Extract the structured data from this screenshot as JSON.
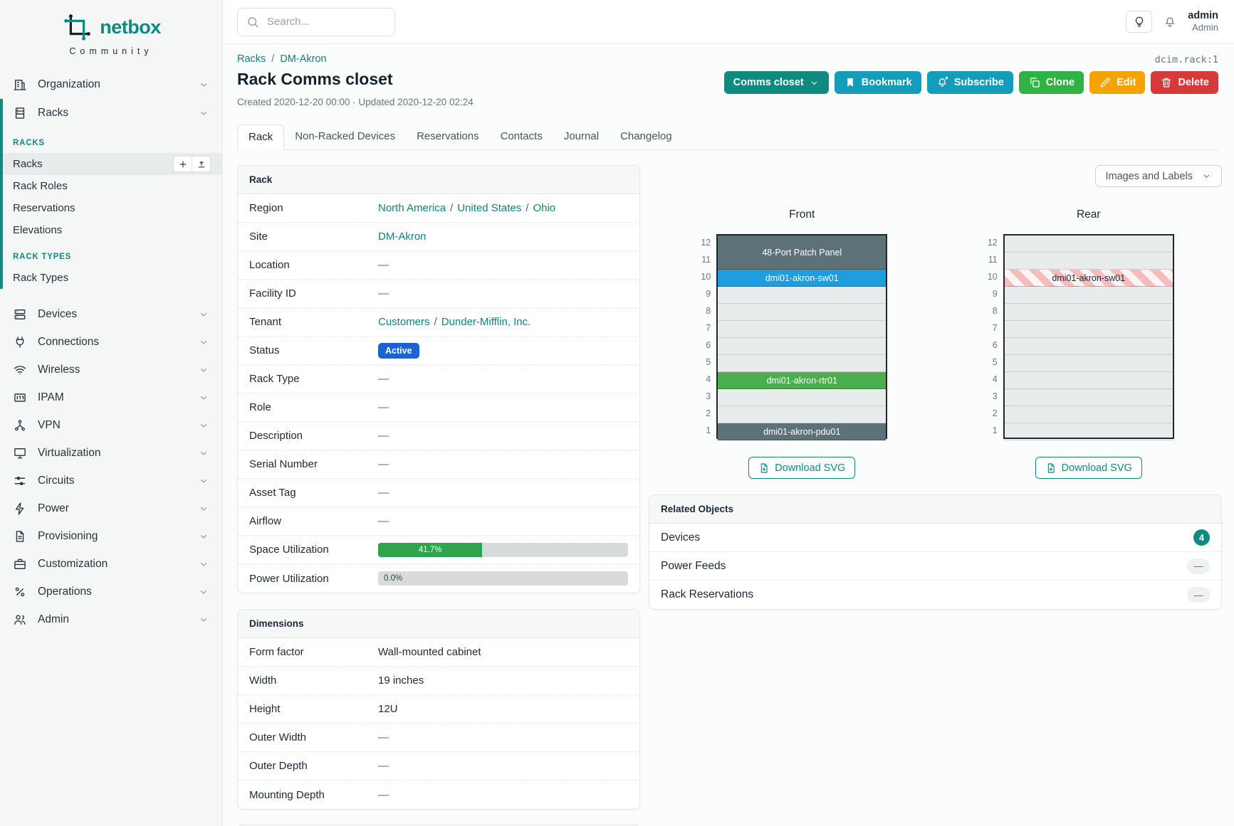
{
  "colors": {
    "brand_teal": "#0e8a80",
    "link_teal": "#0d8577",
    "cyan_button": "#139db8",
    "green_button": "#2fb344",
    "yellow_button": "#f5a300",
    "red_button": "#d63939",
    "status_active_blue": "#1863d6",
    "progress_green": "#2ea44c",
    "device_slate": "#5d7179",
    "device_blue": "#1e9de0",
    "device_green": "#49b04d",
    "reserved_stripe_pink": "#f6bcbc"
  },
  "brand": {
    "name": "netbox",
    "subtitle": "Community"
  },
  "topbar": {
    "search_placeholder": "Search...",
    "user_name": "admin",
    "user_role": "Admin"
  },
  "sidebar": {
    "top_items": [
      {
        "label": "Organization",
        "icon": "building-icon",
        "key": "building"
      }
    ],
    "racks_group": {
      "parent": {
        "label": "Racks",
        "icon": "rack-icon",
        "key": "rack"
      },
      "sections": [
        {
          "title": "RACKS",
          "items": [
            {
              "label": "Racks",
              "active": true,
              "actions": [
                {
                  "icon": "plus-icon",
                  "key": "plus",
                  "name": "add-rack-button"
                },
                {
                  "icon": "upload-icon",
                  "key": "upload",
                  "name": "import-racks-button"
                }
              ]
            },
            {
              "label": "Rack Roles"
            },
            {
              "label": "Reservations"
            },
            {
              "label": "Elevations"
            }
          ]
        },
        {
          "title": "RACK TYPES",
          "items": [
            {
              "label": "Rack Types"
            }
          ]
        }
      ]
    },
    "bottom_items": [
      {
        "label": "Devices",
        "icon": "server-icon",
        "key": "devices"
      },
      {
        "label": "Connections",
        "icon": "plug-icon",
        "key": "connections"
      },
      {
        "label": "Wireless",
        "icon": "wifi-icon",
        "key": "wifi"
      },
      {
        "label": "IPAM",
        "icon": "ipam-icon",
        "key": "ipam"
      },
      {
        "label": "VPN",
        "icon": "network-nodes-icon",
        "key": "vpn"
      },
      {
        "label": "Virtualization",
        "icon": "monitor-icon",
        "key": "virtualization"
      },
      {
        "label": "Circuits",
        "icon": "sliders-icon",
        "key": "circuits"
      },
      {
        "label": "Power",
        "icon": "bolt-icon",
        "key": "power"
      },
      {
        "label": "Provisioning",
        "icon": "document-icon",
        "key": "provisioning"
      },
      {
        "label": "Customization",
        "icon": "briefcase-icon",
        "key": "customization"
      },
      {
        "label": "Operations",
        "icon": "percent-icon",
        "key": "operations"
      },
      {
        "label": "Admin",
        "icon": "users-icon",
        "key": "admin"
      }
    ]
  },
  "header": {
    "breadcrumb": [
      "Racks",
      "DM-Akron"
    ],
    "separator": "/",
    "object_id": "dcim.rack:1",
    "title": "Rack Comms closet",
    "meta": "Created 2020-12-20 00:00 · Updated 2020-12-20 02:24",
    "actions": [
      {
        "label": "Comms closet",
        "style": "teal",
        "icon": "chevron-down-icon"
      },
      {
        "label": "Bookmark",
        "style": "cyan",
        "icon": "bookmark-icon"
      },
      {
        "label": "Subscribe",
        "style": "cyan",
        "icon": "bell-plus-icon"
      },
      {
        "label": "Clone",
        "style": "green",
        "icon": "copy-icon"
      },
      {
        "label": "Edit",
        "style": "yellow",
        "icon": "pencil-icon"
      },
      {
        "label": "Delete",
        "style": "red",
        "icon": "trash-icon"
      }
    ]
  },
  "tabs": [
    {
      "label": "Rack",
      "active": true
    },
    {
      "label": "Non-Racked Devices"
    },
    {
      "label": "Reservations"
    },
    {
      "label": "Contacts"
    },
    {
      "label": "Journal"
    },
    {
      "label": "Changelog"
    }
  ],
  "rack_panel": {
    "title": "Rack",
    "rows": [
      {
        "label": "Region",
        "type": "links",
        "parts": [
          "North America",
          "United States",
          "Ohio"
        ]
      },
      {
        "label": "Site",
        "type": "links",
        "parts": [
          "DM-Akron"
        ]
      },
      {
        "label": "Location",
        "type": "empty",
        "value": "—"
      },
      {
        "label": "Facility ID",
        "type": "empty",
        "value": "—"
      },
      {
        "label": "Tenant",
        "type": "links",
        "parts": [
          "Customers",
          "Dunder-Mifflin, Inc."
        ]
      },
      {
        "label": "Status",
        "type": "badge",
        "value": "Active"
      },
      {
        "label": "Rack Type",
        "type": "empty",
        "value": "—"
      },
      {
        "label": "Role",
        "type": "empty",
        "value": "—"
      },
      {
        "label": "Description",
        "type": "empty",
        "value": "—"
      },
      {
        "label": "Serial Number",
        "type": "empty",
        "value": "—"
      },
      {
        "label": "Asset Tag",
        "type": "empty",
        "value": "—"
      },
      {
        "label": "Airflow",
        "type": "empty",
        "value": "—"
      },
      {
        "label": "Space Utilization",
        "type": "progress",
        "percent": 41.7,
        "text": "41.7%"
      },
      {
        "label": "Power Utilization",
        "type": "progress",
        "percent": 0.0,
        "text": "0.0%"
      }
    ]
  },
  "dimensions_panel": {
    "title": "Dimensions",
    "rows": [
      {
        "label": "Form factor",
        "value": "Wall-mounted cabinet"
      },
      {
        "label": "Width",
        "value": "19 inches"
      },
      {
        "label": "Height",
        "value": "12U"
      },
      {
        "label": "Outer Width",
        "value": "—",
        "empty": true
      },
      {
        "label": "Outer Depth",
        "value": "—",
        "empty": true
      },
      {
        "label": "Mounting Depth",
        "value": "—",
        "empty": true
      }
    ]
  },
  "elevations": {
    "view_selector": "Images and Labels",
    "download_label": "Download SVG",
    "units_total": 12,
    "front": {
      "title": "Front",
      "devices": [
        {
          "name": "48-Port Patch Panel",
          "unit": 12,
          "u_height": 2,
          "color": "#5d7179",
          "text": "#ffffff"
        },
        {
          "name": "dmi01-akron-sw01",
          "unit": 10,
          "u_height": 1,
          "color": "#1e9de0",
          "text": "#ffffff"
        },
        {
          "name": "dmi01-akron-rtr01",
          "unit": 4,
          "u_height": 1,
          "color": "#49b04d",
          "text": "#ffffff"
        },
        {
          "name": "dmi01-akron-pdu01",
          "unit": 1,
          "u_height": 1,
          "color": "#5d7179",
          "text": "#ffffff"
        }
      ]
    },
    "rear": {
      "title": "Rear",
      "devices": [
        {
          "name": "dmi01-akron-sw01",
          "unit": 10,
          "u_height": 1,
          "striped": true,
          "text": "#1b2837"
        }
      ]
    }
  },
  "related": {
    "title": "Related Objects",
    "rows": [
      {
        "label": "Devices",
        "count": "4"
      },
      {
        "label": "Power Feeds",
        "count": "—",
        "empty": true
      },
      {
        "label": "Rack Reservations",
        "count": "—",
        "empty": true
      }
    ]
  }
}
